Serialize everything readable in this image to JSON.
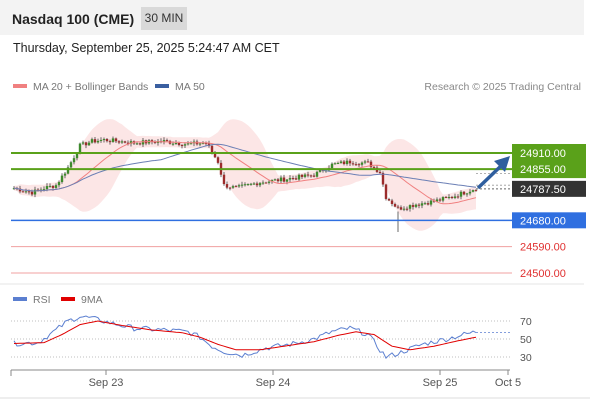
{
  "header": {
    "title": "Nasdaq 100 (CME)",
    "timeframe": "30 MIN",
    "datetime": "Thursday, September 25, 2025 5:24:47 AM CET"
  },
  "chart_data": {
    "type": "candlestick",
    "legend": [
      {
        "name": "MA 20 + Bollinger Bands",
        "color": "#f08080"
      },
      {
        "name": "MA 50",
        "color": "#3a5fa0"
      }
    ],
    "credit": "Research © 2025 Trading Central",
    "levels": [
      {
        "label": "24910.00",
        "value": 24910,
        "kind": "resistance",
        "color": "#5aa11a"
      },
      {
        "label": "24855.00",
        "value": 24855,
        "kind": "resistance",
        "color": "#5aa11a"
      },
      {
        "label": "24787.50",
        "value": 24787.5,
        "kind": "last-price",
        "color": "#333333"
      },
      {
        "label": "24680.00",
        "value": 24680,
        "kind": "pivot",
        "color": "#2f6fe0"
      },
      {
        "label": "24590.00",
        "value": 24590,
        "kind": "support",
        "color": "#e03030"
      },
      {
        "label": "24500.00",
        "value": 24500,
        "kind": "support",
        "color": "#e03030"
      }
    ],
    "x_ticks": [
      "Sep 23",
      "Sep 24",
      "Sep 25",
      "Oct 5"
    ],
    "ohlc_keypoints": [
      [
        0,
        24790
      ],
      [
        6,
        24775
      ],
      [
        10,
        24790
      ],
      [
        14,
        24800
      ],
      [
        18,
        24860
      ],
      [
        22,
        24935
      ],
      [
        26,
        24950
      ],
      [
        30,
        24955
      ],
      [
        40,
        24945
      ],
      [
        50,
        24950
      ],
      [
        58,
        24940
      ],
      [
        64,
        24945
      ],
      [
        68,
        24880
      ],
      [
        70,
        24800
      ],
      [
        74,
        24790
      ],
      [
        82,
        24810
      ],
      [
        90,
        24820
      ],
      [
        100,
        24835
      ],
      [
        106,
        24870
      ],
      [
        112,
        24880
      ],
      [
        118,
        24875
      ],
      [
        122,
        24845
      ],
      [
        124,
        24760
      ],
      [
        128,
        24720
      ],
      [
        134,
        24735
      ],
      [
        140,
        24745
      ],
      [
        146,
        24760
      ],
      [
        150,
        24775
      ],
      [
        154,
        24790
      ]
    ],
    "rsi": {
      "legend": [
        {
          "name": "RSI",
          "color": "#5b7fd0"
        },
        {
          "name": "9MA",
          "color": "#e00000"
        }
      ],
      "y_ticks": [
        "70",
        "50",
        "30"
      ],
      "levels": [
        70,
        50,
        30
      ],
      "rsi_keypoints": [
        [
          0,
          45
        ],
        [
          8,
          46
        ],
        [
          14,
          60
        ],
        [
          18,
          70
        ],
        [
          22,
          75
        ],
        [
          26,
          73
        ],
        [
          32,
          68
        ],
        [
          40,
          62
        ],
        [
          50,
          60
        ],
        [
          58,
          58
        ],
        [
          62,
          52
        ],
        [
          66,
          42
        ],
        [
          70,
          36
        ],
        [
          76,
          32
        ],
        [
          84,
          40
        ],
        [
          92,
          44
        ],
        [
          100,
          50
        ],
        [
          106,
          58
        ],
        [
          112,
          62
        ],
        [
          118,
          55
        ],
        [
          122,
          38
        ],
        [
          124,
          30
        ],
        [
          128,
          34
        ],
        [
          136,
          44
        ],
        [
          144,
          50
        ],
        [
          150,
          55
        ],
        [
          154,
          58
        ]
      ],
      "ma_keypoints": [
        [
          0,
          45
        ],
        [
          10,
          46
        ],
        [
          16,
          55
        ],
        [
          22,
          66
        ],
        [
          28,
          70
        ],
        [
          36,
          65
        ],
        [
          46,
          60
        ],
        [
          56,
          57
        ],
        [
          62,
          52
        ],
        [
          68,
          44
        ],
        [
          74,
          38
        ],
        [
          82,
          38
        ],
        [
          90,
          42
        ],
        [
          100,
          47
        ],
        [
          108,
          54
        ],
        [
          114,
          58
        ],
        [
          120,
          55
        ],
        [
          126,
          42
        ],
        [
          132,
          38
        ],
        [
          140,
          42
        ],
        [
          148,
          48
        ],
        [
          154,
          52
        ]
      ]
    }
  }
}
